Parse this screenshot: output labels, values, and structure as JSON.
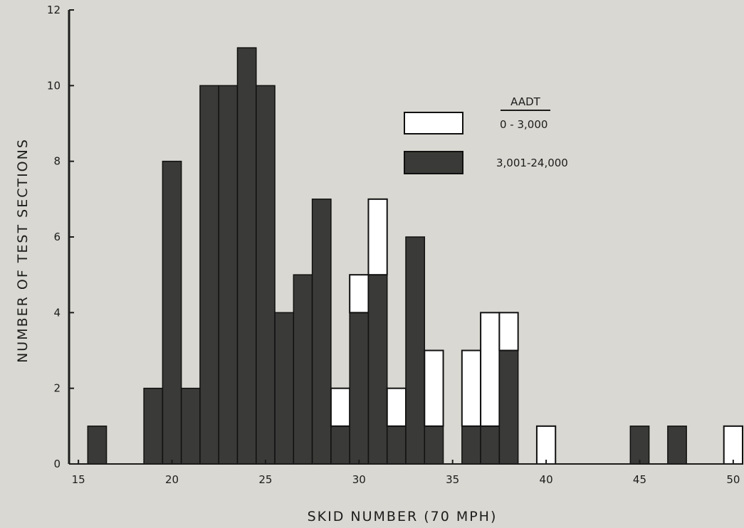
{
  "chart_data": {
    "type": "bar",
    "stacked": true,
    "xlabel": "SKID NUMBER   (70 MPH)",
    "ylabel": "NUMBER OF TEST SECTIONS",
    "xlim": [
      14.5,
      50.5
    ],
    "ylim": [
      0,
      12
    ],
    "xticks": [
      "15",
      "20",
      "25",
      "30",
      "35",
      "40",
      "45",
      "50"
    ],
    "yticks": [
      "0",
      "2",
      "4",
      "6",
      "8",
      "10",
      "12"
    ],
    "legend": {
      "title": "AADT",
      "placement": "upper-right",
      "entries": [
        "0 - 3,000",
        "3,001-24,000"
      ]
    },
    "colors": {
      "low": "#ffffff",
      "high": "#3a3a38",
      "edge": "#111111",
      "background": "#d9d8d2"
    },
    "x": [
      16,
      19,
      20,
      21,
      22,
      23,
      24,
      25,
      26,
      27,
      28,
      29,
      30,
      31,
      32,
      33,
      34,
      36,
      37,
      38,
      40,
      45,
      47,
      50
    ],
    "series": [
      {
        "name": "3,001-24,000",
        "values": [
          1,
          2,
          8,
          2,
          10,
          10,
          11,
          10,
          4,
          5,
          7,
          1,
          4,
          5,
          1,
          6,
          1,
          1,
          1,
          3,
          0,
          1,
          1,
          0
        ]
      },
      {
        "name": "0 - 3,000",
        "values": [
          0,
          0,
          0,
          0,
          0,
          0,
          0,
          0,
          0,
          0,
          0,
          1,
          1,
          2,
          1,
          0,
          2,
          2,
          3,
          1,
          1,
          0,
          0,
          1
        ]
      }
    ]
  }
}
